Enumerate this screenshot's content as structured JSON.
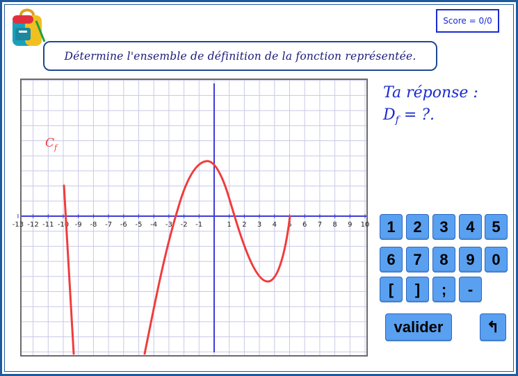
{
  "score": {
    "label": "Score = 0/0"
  },
  "question": {
    "text": "Détermine l'ensemble de définition de la fonction représentée."
  },
  "answer": {
    "line1": "Ta réponse :",
    "line2_prefix": "D",
    "line2_sub": "f",
    "line2_suffix": " = ?."
  },
  "graph": {
    "curve_label": "C",
    "curve_label_sub": "f",
    "curve_color": "#f03c3c",
    "axis_color": "#3c3cd8",
    "grid_color": "#c8c8e8",
    "x_ticks": [
      "-13",
      "-12",
      "-11",
      "-10",
      "-9",
      "-8",
      "-7",
      "-6",
      "-5",
      "-4",
      "-3",
      "-2",
      "-1",
      "1",
      "2",
      "3",
      "4",
      "5",
      "6",
      "7",
      "8",
      "9",
      "10"
    ]
  },
  "keypad": {
    "keys": [
      "1",
      "2",
      "3",
      "4",
      "5",
      "6",
      "7",
      "8",
      "9",
      "0",
      "[",
      "]",
      ";",
      "-"
    ],
    "submit_label": "valider",
    "back_label": "↰"
  },
  "colors": {
    "key_bg": "#5aa0f0",
    "frame": "#1e5aa0",
    "text_blue": "#1a2ad0"
  }
}
